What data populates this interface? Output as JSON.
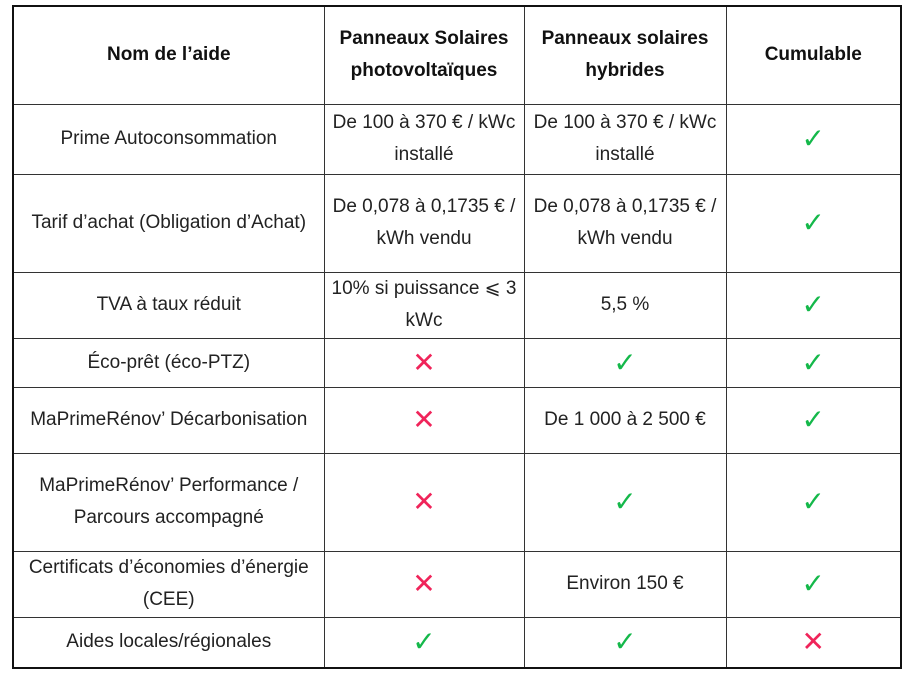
{
  "table": {
    "header": [
      "Nom de l’aide",
      "Panneaux Solaires photovoltaïques",
      "Panneaux solaires hybrides",
      "Cumulable"
    ],
    "rows": [
      [
        "Prime Autoconsommation",
        "De 100 à 370 € / kWc installé",
        "De 100 à 370 € / kWc installé",
        "✓"
      ],
      [
        "Tarif d’achat (Obligation d’Achat)",
        "De 0,078 à 0,1735 € / kWh vendu",
        "De 0,078 à 0,1735 € / kWh vendu",
        "✓"
      ],
      [
        "TVA à taux réduit",
        "10% si puissance ⩽ 3 kWc",
        "5,5 %",
        "✓"
      ],
      [
        "Éco-prêt (éco-PTZ)",
        "✕",
        "✓",
        "✓"
      ],
      [
        "MaPrimeRénov’ Décarbonisation",
        "✕",
        "De 1 000 à 2 500 €",
        "✓"
      ],
      [
        "MaPrimeRénov’ Performance / Parcours accompagné",
        "✕",
        "✓",
        "✓"
      ],
      [
        "Certificats d’économies d’énergie (CEE)",
        "✕",
        "Environ 150 €",
        "✓"
      ],
      [
        "Aides locales/régionales",
        "✓",
        "✓",
        "✕"
      ]
    ],
    "icon_colors": {
      "✓": "#14b84a",
      "✕": "#f0245a"
    }
  }
}
